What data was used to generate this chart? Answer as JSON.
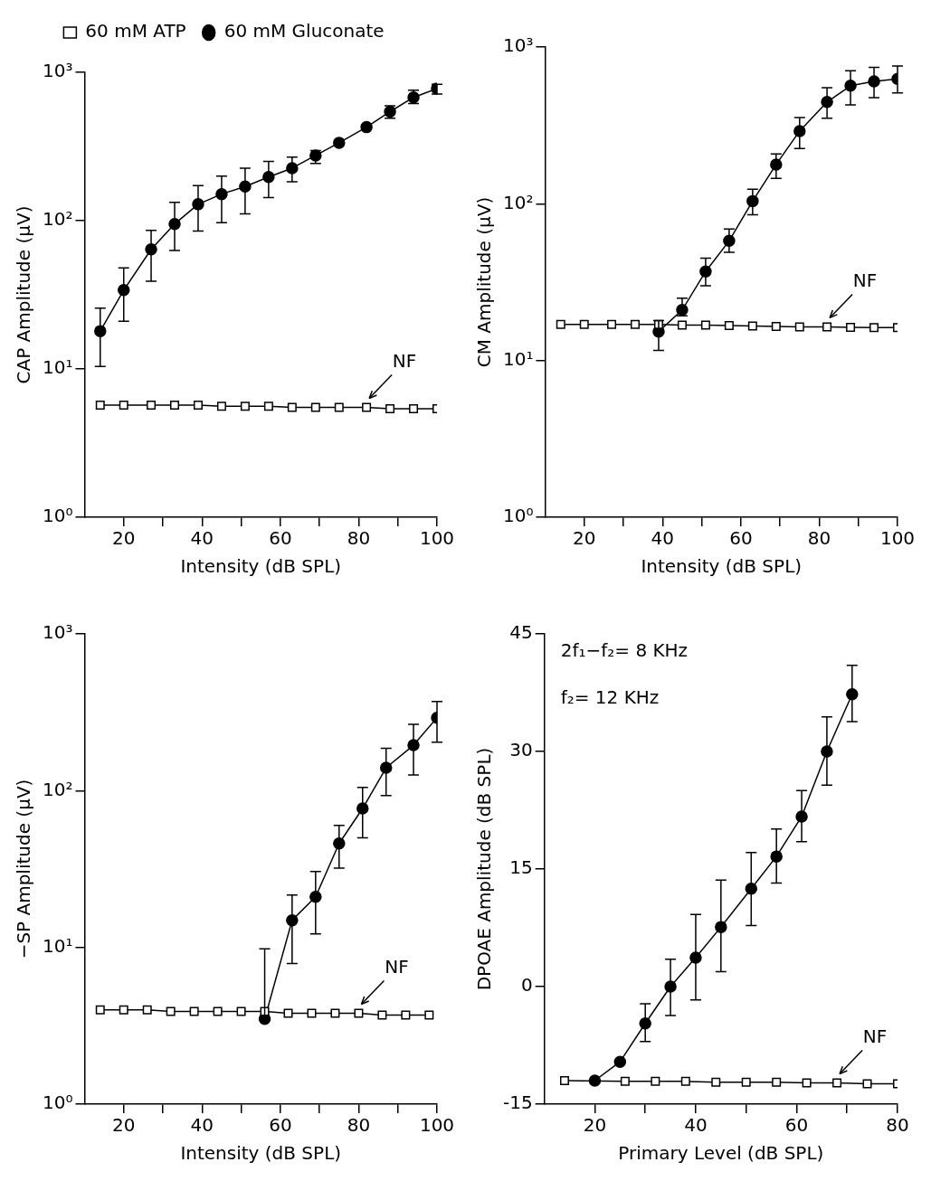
{
  "chart_data": [
    {
      "type": "line",
      "xlabel": "Intensity (dB SPL)",
      "ylabel": "CAP Amplitude (µV)",
      "log": "y",
      "legend": "top",
      "xlim": [
        10,
        100
      ],
      "xticks": [
        20,
        {
          "value": 30,
          "label": null
        },
        40,
        {
          "value": 50,
          "label": null
        },
        60,
        {
          "value": 70,
          "label": null
        },
        80,
        {
          "value": 90,
          "label": null
        },
        100
      ],
      "ylim": [
        1,
        1000
      ],
      "yticks": [
        {
          "value": 1,
          "label": "10⁰"
        },
        {
          "value": 10,
          "label": "10¹"
        },
        {
          "value": 100,
          "label": "10²"
        },
        {
          "value": 1000,
          "label": "10³"
        }
      ],
      "annotations": [
        {
          "text": "NF",
          "x": 82,
          "y": 5.5
        }
      ],
      "series": [
        {
          "name": "60 mM Gluconate",
          "color": "#000000",
          "marker": "circle",
          "x": [
            14,
            20,
            27,
            33,
            39,
            45,
            51,
            57,
            63,
            69,
            75,
            82,
            88,
            94,
            100
          ],
          "values": [
            18,
            34,
            64,
            95,
            129,
            151,
            170,
            197,
            226,
            275,
            335,
            427,
            543,
            678,
            778
          ],
          "errors": [
            [
              10.4,
              25.7
            ],
            [
              21,
              48
            ],
            [
              39,
              86
            ],
            [
              63,
              133
            ],
            [
              85,
              172
            ],
            [
              97,
              200
            ],
            [
              111,
              226
            ],
            [
              143,
              251
            ],
            [
              183,
              268
            ],
            [
              243,
              297
            ],
            null,
            null,
            [
              490,
              594
            ],
            [
              617,
              759
            ],
            [
              713,
              830
            ]
          ]
        },
        {
          "name": "60 mM ATP",
          "color": "#000000",
          "marker": "square",
          "x": [
            14,
            20,
            27,
            33,
            39,
            45,
            51,
            57,
            63,
            69,
            75,
            82,
            88,
            94,
            100
          ],
          "values": [
            5.7,
            5.7,
            5.7,
            5.7,
            5.7,
            5.6,
            5.6,
            5.6,
            5.5,
            5.5,
            5.5,
            5.5,
            5.4,
            5.4,
            5.4
          ]
        }
      ]
    },
    {
      "type": "line",
      "xlabel": "Intensity (dB SPL)",
      "ylabel": "CM Amplitude (µV)",
      "log": "y",
      "xlim": [
        10,
        100
      ],
      "xticks": [
        20,
        {
          "value": 30,
          "label": null
        },
        40,
        {
          "value": 50,
          "label": null
        },
        60,
        {
          "value": 70,
          "label": null
        },
        80,
        {
          "value": 90,
          "label": null
        },
        100
      ],
      "ylim": [
        1,
        1000
      ],
      "yticks": [
        {
          "value": 1,
          "label": "10⁰"
        },
        {
          "value": 10,
          "label": "10¹"
        },
        {
          "value": 100,
          "label": "10²"
        },
        {
          "value": 1000,
          "label": "10³"
        }
      ],
      "annotations": [
        {
          "text": "NF",
          "x": 82,
          "y": 16.4
        }
      ],
      "series": [
        {
          "color": "#000000",
          "marker": "circle",
          "x": [
            39,
            45,
            51,
            57,
            63,
            69,
            75,
            82,
            88,
            94,
            100
          ],
          "values": [
            15.3,
            21,
            37,
            58,
            104,
            178,
            291,
            446,
            566,
            603,
            626
          ],
          "errors": [
            [
              11.6,
              18
            ],
            [
              19.3,
              25
            ],
            [
              30,
              45
            ],
            [
              49,
              69
            ],
            [
              85,
              124
            ],
            [
              145,
              208
            ],
            [
              225,
              355
            ],
            [
              351,
              550
            ],
            [
              427,
              706
            ],
            [
              476,
              741
            ],
            [
              509,
              757
            ]
          ]
        },
        {
          "color": "#000000",
          "marker": "square",
          "x": [
            14,
            20,
            27,
            33,
            39,
            45,
            51,
            57,
            63,
            69,
            75,
            82,
            88,
            94,
            100
          ],
          "values": [
            17,
            17,
            17,
            17,
            17,
            16.8,
            16.8,
            16.7,
            16.6,
            16.5,
            16.4,
            16.4,
            16.3,
            16.2,
            16.2
          ]
        }
      ]
    },
    {
      "type": "line",
      "xlabel": "Intensity (dB SPL)",
      "ylabel": "−SP Amplitude (µV)",
      "log": "y",
      "xlim": [
        10,
        100
      ],
      "xticks": [
        20,
        {
          "value": 30,
          "label": null
        },
        40,
        {
          "value": 50,
          "label": null
        },
        60,
        {
          "value": 70,
          "label": null
        },
        80,
        {
          "value": 90,
          "label": null
        },
        100
      ],
      "ylim": [
        1,
        1000
      ],
      "yticks": [
        {
          "value": 1,
          "label": "10⁰"
        },
        {
          "value": 10,
          "label": "10¹"
        },
        {
          "value": 100,
          "label": "10²"
        },
        {
          "value": 1000,
          "label": "10³"
        }
      ],
      "annotations": [
        {
          "text": "NF",
          "x": 80,
          "y": 3.8
        }
      ],
      "series": [
        {
          "color": "#000000",
          "marker": "circle",
          "x": [
            56,
            63,
            69,
            75,
            81,
            87,
            94,
            100
          ],
          "values": [
            3.5,
            14.9,
            21,
            46,
            77,
            140,
            195,
            292
          ],
          "errors": [
            [
              3.5,
              9.8
            ],
            [
              7.9,
              21.6
            ],
            [
              12.2,
              30.5
            ],
            [
              32,
              60
            ],
            [
              50,
              105
            ],
            [
              93,
              186
            ],
            [
              126,
              265
            ],
            [
              204,
              371
            ]
          ]
        },
        {
          "color": "#000000",
          "marker": "square",
          "x": [
            14,
            20,
            26,
            32,
            38,
            44,
            50,
            56,
            62,
            68,
            74,
            80,
            86,
            92,
            98
          ],
          "values": [
            4.0,
            4.0,
            4.0,
            3.9,
            3.9,
            3.9,
            3.9,
            3.9,
            3.8,
            3.8,
            3.8,
            3.8,
            3.7,
            3.7,
            3.7
          ]
        }
      ]
    },
    {
      "type": "line",
      "xlabel": "Primary Level (dB SPL)",
      "ylabel": "DPOAE Amplitude (dB SPL)",
      "xlim": [
        10,
        80
      ],
      "xticks": [
        20,
        {
          "value": 30,
          "label": null
        },
        40,
        {
          "value": 50,
          "label": null
        },
        60,
        {
          "value": 70,
          "label": null
        },
        80
      ],
      "ylim": [
        -15,
        45
      ],
      "yticks": [
        -15,
        0,
        15,
        30,
        45
      ],
      "annotations": [
        "2f₁−f₂= 8 KHz",
        "f₂= 12 KHz",
        {
          "text": "NF",
          "x": 68,
          "y": -12.3
        }
      ],
      "series": [
        {
          "color": "#000000",
          "marker": "circle",
          "x": [
            20,
            25,
            30,
            35,
            40,
            45,
            51,
            56,
            61,
            66,
            71
          ],
          "values": [
            -12,
            -9.6,
            -4.7,
            0,
            3.7,
            7.6,
            12.5,
            16.6,
            21.7,
            30,
            37.3
          ],
          "errors": [
            null,
            null,
            [
              -7,
              -2.2
            ],
            [
              -3.7,
              3.5
            ],
            [
              -1.7,
              9.2
            ],
            [
              1.9,
              13.6
            ],
            [
              7.8,
              17.1
            ],
            [
              13.2,
              20.1
            ],
            [
              18.5,
              25
            ],
            [
              25.7,
              34.4
            ],
            [
              33.8,
              41
            ]
          ]
        },
        {
          "color": "#000000",
          "marker": "square",
          "x": [
            14,
            20,
            26,
            32,
            38,
            44,
            50,
            56,
            62,
            68,
            74,
            80
          ],
          "values": [
            -12,
            null,
            -12.1,
            -12.1,
            -12.1,
            -12.2,
            -12.2,
            -12.2,
            -12.3,
            -12.3,
            -12.4,
            -12.4
          ]
        }
      ]
    }
  ]
}
